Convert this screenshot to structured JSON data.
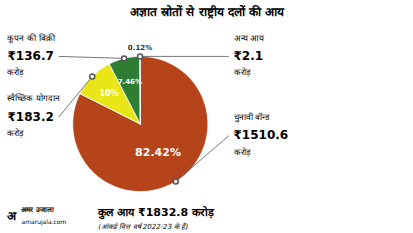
{
  "chart_data": {
    "type": "pie",
    "title": "अज्ञात स्रोतों से राष्ट्रीय दलों की आय",
    "categories": [
      "चुनावी बॉन्ड",
      "स्वैच्छिक योगदान",
      "कूपन की बिक्री",
      "अन्य आय"
    ],
    "values": [
      82.42,
      10.0,
      7.46,
      0.12
    ],
    "colors": [
      "#b5441a",
      "#e8e617",
      "#2e7d32",
      "#2e1a6e"
    ],
    "data_labels": true,
    "value_labels": [
      "82.42%",
      "10%",
      "7.46%",
      "0.12%"
    ],
    "amount_labels": [
      "₹1510.6",
      "₹183.2",
      "₹136.7",
      "₹2.1"
    ],
    "units": [
      "करोड़",
      "करोड़",
      "करोड़",
      "करोड़"
    ],
    "annotations": [
      "अ",
      "अमर उजाला",
      "amarujala.com",
      "कुल आय",
      "₹1832.8",
      "करोड़",
      "(आंकड़े वित्त वर्ष 2022-23 के हैं)"
    ]
  }
}
